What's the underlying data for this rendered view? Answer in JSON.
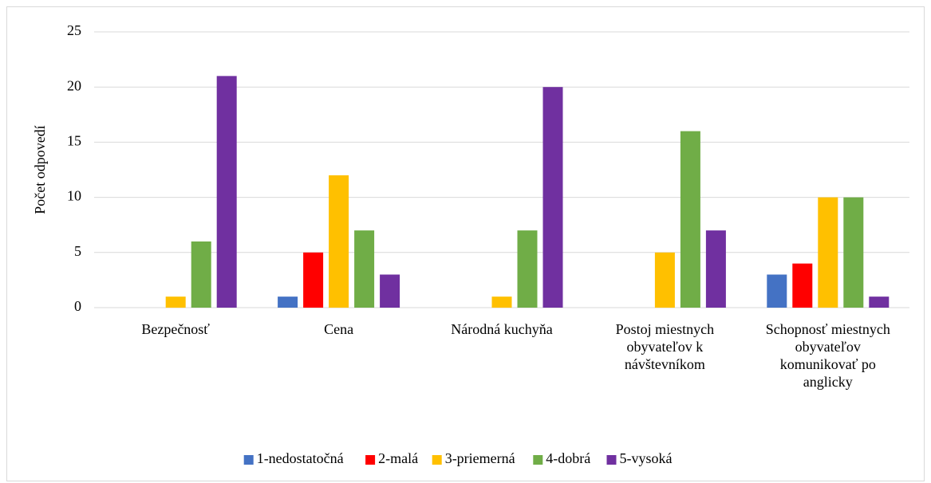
{
  "chart_data": {
    "type": "bar",
    "y_label": "Počet odpovedí",
    "categories": [
      "Bezpečnosť",
      "Cena",
      "Národná kuchyňa",
      "Postoj miestnych obyvateľov k návštevníkom",
      "Schopnosť miestnych obyvateľov komunikovať po anglicky"
    ],
    "series": [
      {
        "name": "1-nedostatočná",
        "color": "#4472c4",
        "values": [
          0,
          1,
          0,
          0,
          3
        ]
      },
      {
        "name": "2-malá",
        "color": "#ff0000",
        "values": [
          0,
          5,
          0,
          0,
          4
        ]
      },
      {
        "name": "3-priemerná",
        "color": "#ffc000",
        "values": [
          1,
          12,
          1,
          5,
          10
        ]
      },
      {
        "name": "4-dobrá",
        "color": "#70ad47",
        "values": [
          6,
          7,
          7,
          16,
          10
        ]
      },
      {
        "name": "5-vysoká",
        "color": "#7030a0",
        "values": [
          21,
          3,
          20,
          7,
          1
        ]
      }
    ],
    "ylim": [
      0,
      25
    ],
    "yticks": [
      0,
      5,
      10,
      15,
      20,
      25
    ],
    "grid": true,
    "legend": "bottom"
  }
}
